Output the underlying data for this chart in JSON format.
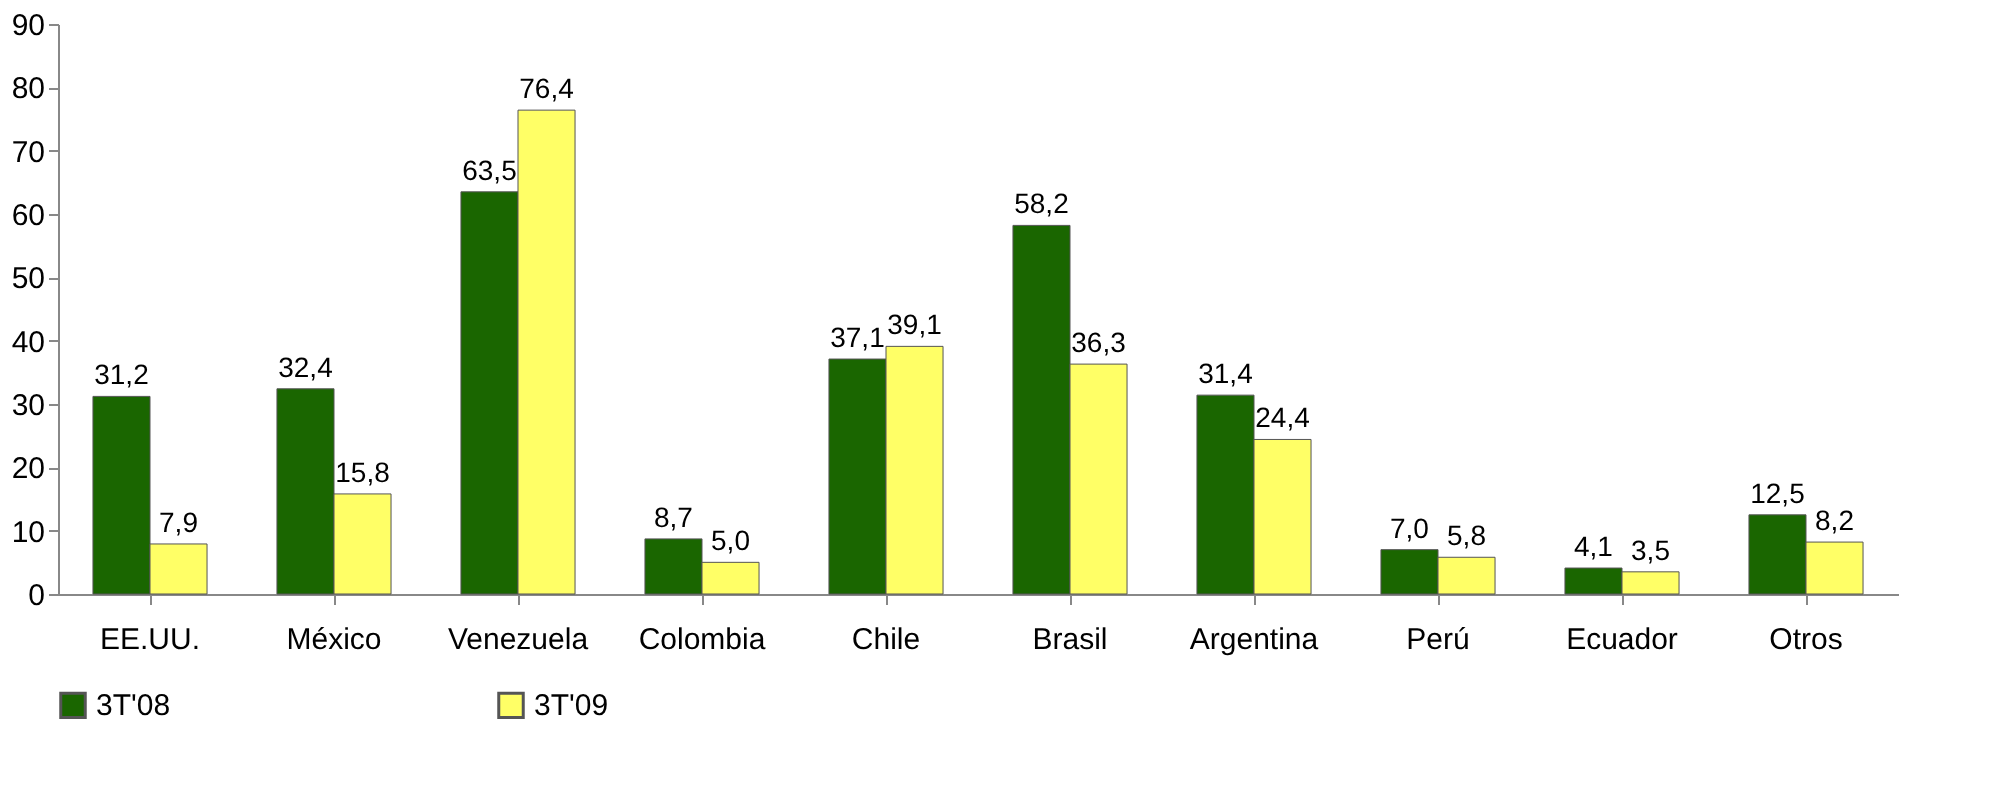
{
  "chart_data": {
    "type": "bar",
    "categories": [
      "EE.UU.",
      "México",
      "Venezuela",
      "Colombia",
      "Chile",
      "Brasil",
      "Argentina",
      "Perú",
      "Ecuador",
      "Otros"
    ],
    "series": [
      {
        "name": "3T'08",
        "color": "#1a6600",
        "values": [
          31.2,
          32.4,
          63.5,
          8.7,
          37.1,
          58.2,
          31.4,
          7.0,
          4.1,
          12.5
        ],
        "value_labels": [
          "31,2",
          "32,4",
          "63,5",
          "8,7",
          "37,1",
          "58,2",
          "31,4",
          "7,0",
          "4,1",
          "12,5"
        ]
      },
      {
        "name": "3T'09",
        "color": "#ffff66",
        "values": [
          7.9,
          15.8,
          76.4,
          5.0,
          39.1,
          36.3,
          24.4,
          5.8,
          3.5,
          8.2
        ],
        "value_labels": [
          "7,9",
          "15,8",
          "76,4",
          "5,0",
          "39,1",
          "36,3",
          "24,4",
          "5,8",
          "3,5",
          "8,2"
        ]
      }
    ],
    "ylim": [
      0,
      90
    ],
    "yticks": [
      0,
      10,
      20,
      30,
      40,
      50,
      60,
      70,
      80,
      90
    ],
    "grid": false,
    "legend": "bottom"
  }
}
